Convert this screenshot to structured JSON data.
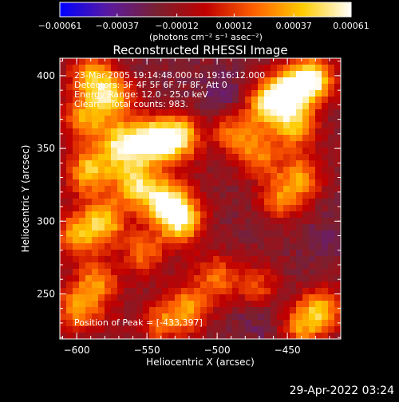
{
  "chart_data": {
    "type": "heatmap",
    "title": "Reconstructed RHESSI Image",
    "xlabel": "Heliocentric X (arcsec)",
    "ylabel": "Heliocentric Y (arcsec)",
    "xlim": [
      -612,
      -412
    ],
    "ylim": [
      219,
      412
    ],
    "x_ticks": [
      -600,
      -550,
      -500,
      -450
    ],
    "y_ticks": [
      250,
      300,
      350,
      400
    ],
    "x_tick_labels": [
      "−600",
      "−550",
      "−500",
      "−450"
    ],
    "y_tick_labels": [
      "250",
      "300",
      "350",
      "400"
    ],
    "colorbar": {
      "range": [
        -0.00061,
        0.00061
      ],
      "ticks": [
        -0.00061,
        -0.00037,
        -0.00012,
        0.00012,
        0.00037,
        0.00061
      ],
      "tick_labels": [
        "−0.00061",
        "−0.00037",
        "−0.00012",
        "0.00012",
        "0.00037",
        "0.00061"
      ],
      "units": "(photons cm⁻² s⁻¹ asec⁻²)",
      "colors": [
        "#0000ff",
        "#5a1aa0",
        "#7a2030",
        "#c00000",
        "#ff6000",
        "#ffcc00",
        "#ffffff"
      ]
    },
    "annotations": [
      "23-Mar-2005 19:14:48.000 to 19:16:12.000",
      "Detectors: 3F 4F 5F 6F 7F 8F, Att 0",
      "Energy Range: 12.0 - 25.0 keV",
      "Clean    Total counts: 983."
    ],
    "peak_label": "Position of Peak = [-433,397]",
    "peak": [
      -433,
      397
    ],
    "grid": false,
    "hotspots": [
      {
        "x": -567,
        "y": 352,
        "value": 0.00052
      },
      {
        "x": -545,
        "y": 355,
        "value": 0.00055
      },
      {
        "x": -527,
        "y": 358,
        "value": 0.00045
      },
      {
        "x": -590,
        "y": 335,
        "value": 0.0004
      },
      {
        "x": -558,
        "y": 325,
        "value": 0.00042
      },
      {
        "x": -537,
        "y": 313,
        "value": 0.0005
      },
      {
        "x": -525,
        "y": 300,
        "value": 0.00046
      },
      {
        "x": -580,
        "y": 300,
        "value": 0.00038
      },
      {
        "x": -600,
        "y": 290,
        "value": 0.0003
      },
      {
        "x": -595,
        "y": 370,
        "value": 0.0003
      },
      {
        "x": -575,
        "y": 385,
        "value": 0.0004
      },
      {
        "x": -590,
        "y": 400,
        "value": 0.00032
      },
      {
        "x": -600,
        "y": 240,
        "value": 0.0003
      },
      {
        "x": -585,
        "y": 258,
        "value": 0.00025
      },
      {
        "x": -552,
        "y": 278,
        "value": 0.00022
      },
      {
        "x": -520,
        "y": 240,
        "value": 0.00028
      },
      {
        "x": -500,
        "y": 262,
        "value": 0.0002
      },
      {
        "x": -488,
        "y": 362,
        "value": 0.00028
      },
      {
        "x": -470,
        "y": 345,
        "value": 0.00022
      },
      {
        "x": -455,
        "y": 315,
        "value": 0.0002
      },
      {
        "x": -440,
        "y": 330,
        "value": 0.00025
      },
      {
        "x": -433,
        "y": 397,
        "value": 0.00061
      },
      {
        "x": -450,
        "y": 388,
        "value": 0.00048
      },
      {
        "x": -465,
        "y": 380,
        "value": 0.00035
      },
      {
        "x": -445,
        "y": 365,
        "value": 0.00032
      },
      {
        "x": -425,
        "y": 240,
        "value": 0.0003
      },
      {
        "x": -440,
        "y": 228,
        "value": 0.00025
      },
      {
        "x": -540,
        "y": 230,
        "value": 0.00018
      },
      {
        "x": -470,
        "y": 255,
        "value": 0.00015
      }
    ],
    "coldspots": [
      {
        "x": -495,
        "y": 385,
        "value": -0.0003
      },
      {
        "x": -488,
        "y": 372,
        "value": -0.00025
      },
      {
        "x": -470,
        "y": 232,
        "value": -0.00028
      },
      {
        "x": -455,
        "y": 250,
        "value": -0.00022
      },
      {
        "x": -420,
        "y": 290,
        "value": -0.00025
      },
      {
        "x": -520,
        "y": 268,
        "value": -0.00015
      },
      {
        "x": -600,
        "y": 318,
        "value": -0.00012
      },
      {
        "x": -515,
        "y": 330,
        "value": -0.00012
      },
      {
        "x": -430,
        "y": 350,
        "value": -0.00015
      },
      {
        "x": -575,
        "y": 230,
        "value": -0.0001
      }
    ]
  },
  "footer_timestamp": "29-Apr-2022 03:24"
}
